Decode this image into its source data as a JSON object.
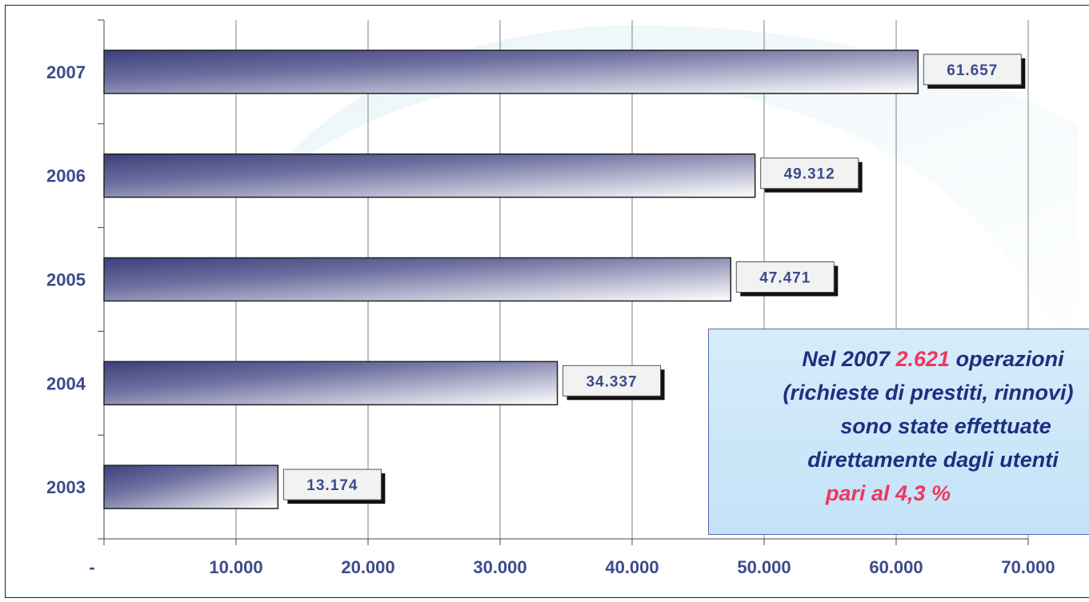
{
  "chart_data": {
    "type": "bar",
    "orientation": "horizontal",
    "categories": [
      "2003",
      "2004",
      "2005",
      "2006",
      "2007"
    ],
    "values": [
      13174,
      34337,
      47471,
      49312,
      61657
    ],
    "data_labels": [
      "13.174",
      "34.337",
      "47.471",
      "49.312",
      "61.657"
    ],
    "xlim": [
      0,
      70000
    ],
    "x_ticks": [
      0,
      10000,
      20000,
      30000,
      40000,
      50000,
      60000,
      70000
    ],
    "x_tick_labels": [
      "-",
      "10.000",
      "20.000",
      "30.000",
      "40.000",
      "50.000",
      "60.000",
      "70.000"
    ],
    "grid": "vertical",
    "colors": {
      "bar_dark": "#3d3f7c",
      "bar_light": "#ffffff",
      "text": "#3d4b8c",
      "grid": "#808080",
      "label_fill": "#f2f2f2",
      "label_shadow": "#111111"
    }
  },
  "callout": {
    "line1_prefix": "Nel 2007 ",
    "line1_highlight": "2.621",
    "line1_suffix": " operazioni",
    "line2": "(richieste di prestiti, rinnovi)",
    "line3": "sono state effettuate",
    "line4": "direttamente dagli utenti",
    "line5": "pari al 4,3 %",
    "colors": {
      "text": "#1e2f7f",
      "highlight": "#f0365e",
      "background": "#cce7f9"
    }
  }
}
